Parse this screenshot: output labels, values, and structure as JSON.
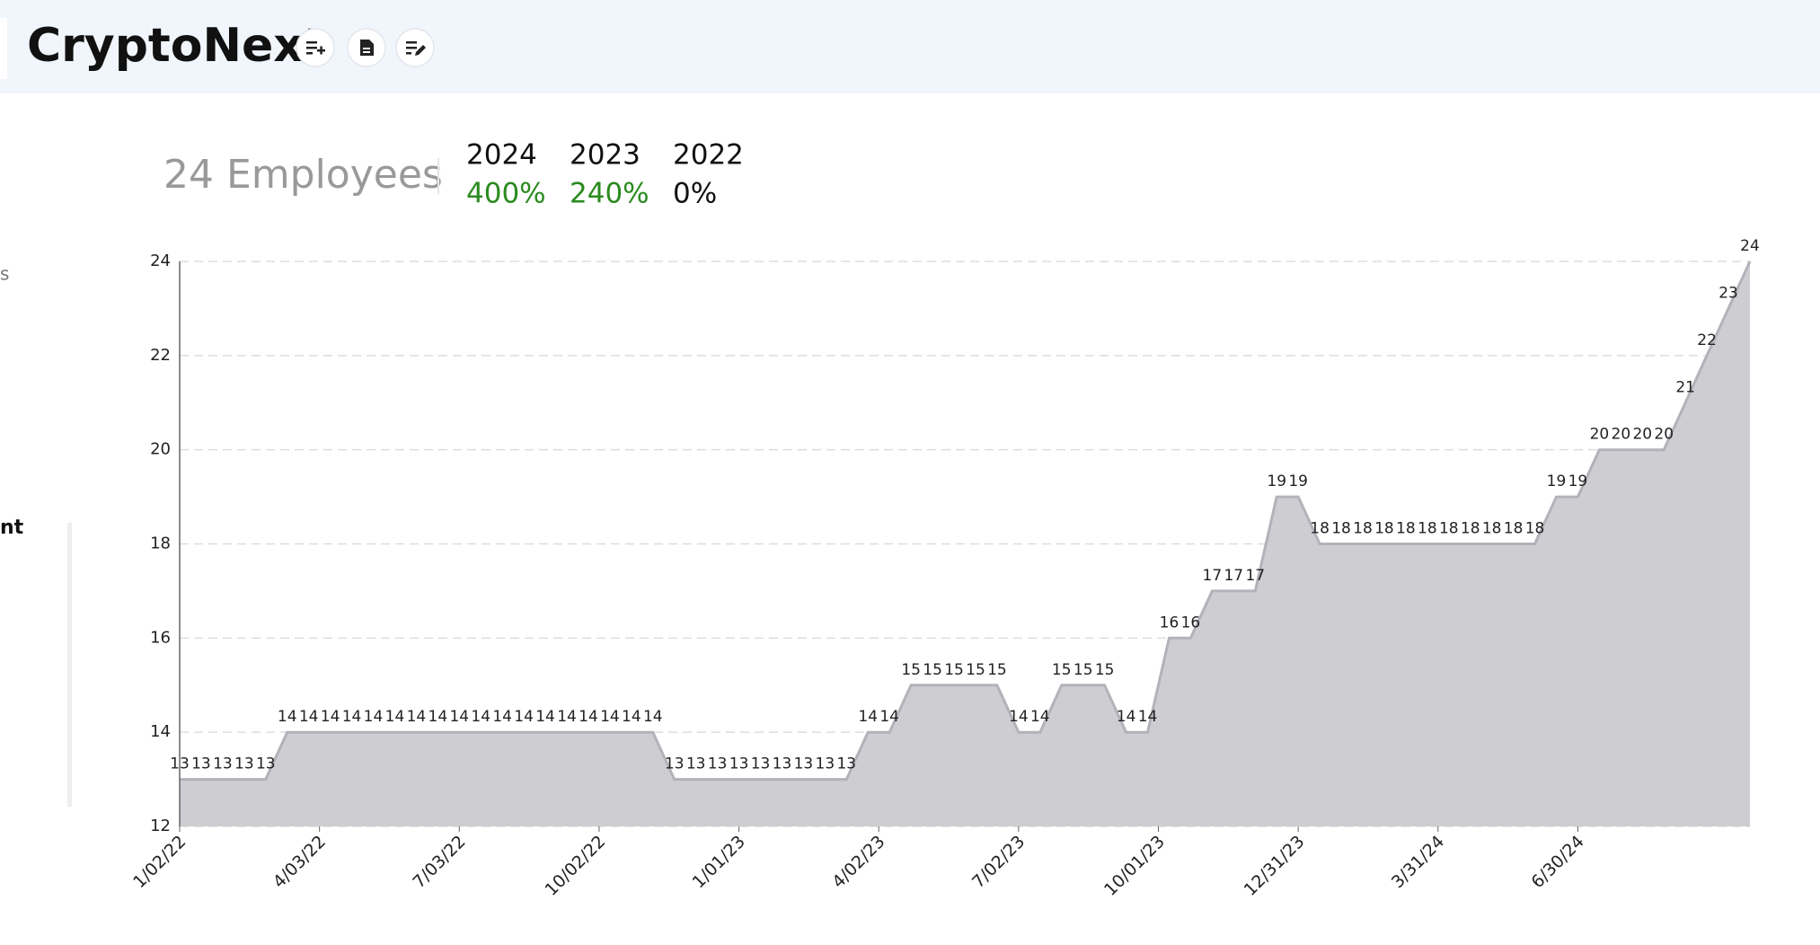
{
  "header": {
    "title": "CryptoNext"
  },
  "sidebar": {
    "fragments": [
      "s",
      "nt"
    ]
  },
  "stats": {
    "headline": "24 Employees",
    "years": [
      {
        "year": "2024",
        "change": "400%"
      },
      {
        "year": "2023",
        "change": "240%"
      },
      {
        "year": "2022",
        "change": "0%"
      }
    ]
  },
  "chart_data": {
    "type": "area",
    "color": "#cdcdd2",
    "line_color": "#b2b2ba",
    "grid": true,
    "x": [
      "1/02/22",
      "1/16/22",
      "1/30/22",
      "2/13/22",
      "2/27/22",
      "3/13/22",
      "3/27/22",
      "4/10/22",
      "4/24/22",
      "5/08/22",
      "5/22/22",
      "6/05/22",
      "6/19/22",
      "7/03/22",
      "7/17/22",
      "7/31/22",
      "8/14/22",
      "8/28/22",
      "9/11/22",
      "9/25/22",
      "10/09/22",
      "10/23/22",
      "11/06/22",
      "11/20/22",
      "12/04/22",
      "12/18/22",
      "1/01/23",
      "1/15/23",
      "1/29/23",
      "2/12/23",
      "2/26/23",
      "3/12/23",
      "3/26/23",
      "4/09/23",
      "4/23/23",
      "5/07/23",
      "5/21/23",
      "6/04/23",
      "6/18/23",
      "7/02/23",
      "7/16/23",
      "7/30/23",
      "8/13/23",
      "8/27/23",
      "9/10/23",
      "9/24/23",
      "10/08/23",
      "10/22/23",
      "11/05/23",
      "11/19/23",
      "12/03/23",
      "12/17/23",
      "12/31/23",
      "1/14/24",
      "1/28/24",
      "2/11/24",
      "2/25/24",
      "3/10/24",
      "3/24/24",
      "4/07/24",
      "4/21/24",
      "5/05/24",
      "5/19/24",
      "6/02/24",
      "6/16/24",
      "6/30/24",
      "7/14/24",
      "7/28/24",
      "8/11/24",
      "8/25/24",
      "9/08/24",
      "9/22/24",
      "10/06/24",
      "10/20/24"
    ],
    "values": [
      13,
      13,
      13,
      13,
      13,
      14,
      14,
      14,
      14,
      14,
      14,
      14,
      14,
      14,
      14,
      14,
      14,
      14,
      14,
      14,
      14,
      14,
      14,
      13,
      13,
      13,
      13,
      13,
      13,
      13,
      13,
      13,
      14,
      14,
      15,
      15,
      15,
      15,
      15,
      14,
      14,
      15,
      15,
      15,
      14,
      14,
      16,
      16,
      17,
      17,
      17,
      19,
      19,
      18,
      18,
      18,
      18,
      18,
      18,
      18,
      18,
      18,
      18,
      18,
      19,
      19,
      20,
      20,
      20,
      20,
      21,
      22,
      23,
      24
    ],
    "xlim": [
      "1/02/22",
      "10/20/24"
    ],
    "xticks": [
      "1/02/22",
      "4/03/22",
      "7/03/22",
      "10/02/22",
      "1/01/23",
      "4/02/23",
      "7/02/23",
      "10/01/23",
      "12/31/23",
      "3/31/24",
      "6/30/24"
    ],
    "ylim": [
      12,
      24
    ],
    "yticks": [
      12,
      14,
      16,
      18,
      20,
      22,
      24
    ]
  }
}
